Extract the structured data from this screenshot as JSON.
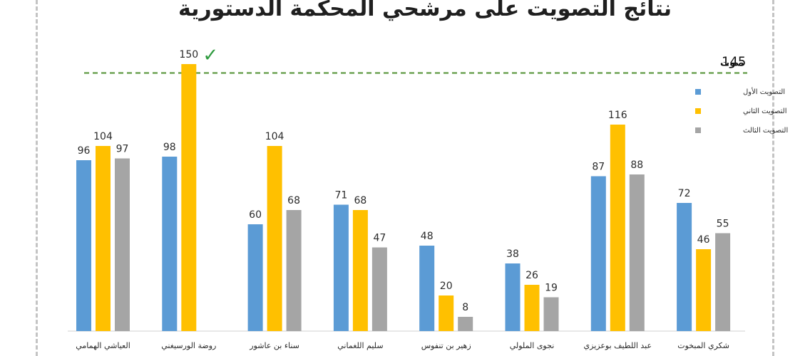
{
  "chart_data": {
    "type": "bar",
    "title": "نتائج التصويت على مرشحي المحكمة الدستورية",
    "categories": [
      "العياشي الهمامي",
      "روضة الورسيغني",
      "سناء بن عاشور",
      "سليم اللغماني",
      "زهير بن تنفوس",
      "نجوى الملولي",
      "عبد اللطيف بوعزيزي",
      "شكري المبخوت"
    ],
    "series": [
      {
        "name": "التصويت الأول",
        "color": "#5B9BD5",
        "values": [
          96,
          98,
          60,
          71,
          48,
          38,
          87,
          72
        ]
      },
      {
        "name": "التصويت الثاني",
        "color": "#FFC000",
        "values": [
          104,
          150,
          104,
          68,
          20,
          26,
          116,
          46
        ]
      },
      {
        "name": "التصويت الثالث",
        "color": "#A5A5A5",
        "values": [
          97,
          null,
          68,
          47,
          8,
          19,
          88,
          55
        ]
      }
    ],
    "threshold": {
      "value": 145,
      "number": "145",
      "unit": "صوت",
      "color": "#4E8F2F"
    },
    "checkmark": {
      "category_index": 1,
      "series_index": 1,
      "symbol": "✓",
      "color": "#2E9A3E"
    },
    "ylim": [
      0,
      160
    ],
    "grid": false,
    "legend_position": "right"
  }
}
